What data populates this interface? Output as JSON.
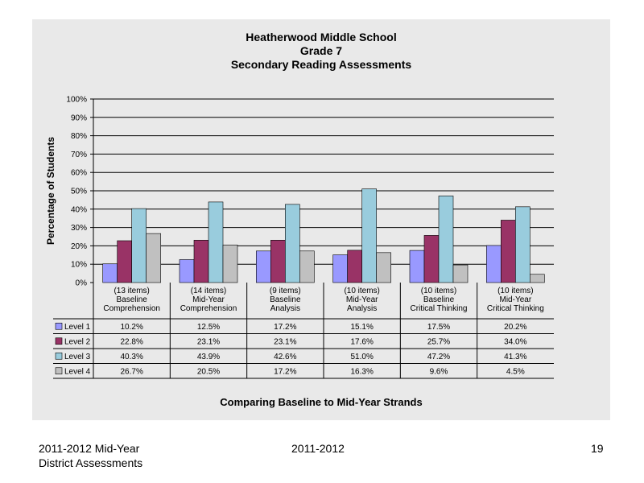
{
  "chart_data": {
    "type": "bar",
    "title": [
      "Heatherwood Middle School",
      "Grade 7",
      "Secondary Reading Assessments"
    ],
    "ylabel": "Percentage of Students",
    "xlabel": "Comparing Baseline to Mid-Year Strands",
    "ylim": [
      0,
      100
    ],
    "yticks": [
      "0%",
      "10%",
      "20%",
      "30%",
      "40%",
      "50%",
      "60%",
      "70%",
      "80%",
      "90%",
      "100%"
    ],
    "grid": true,
    "categories": [
      [
        "(13 items)",
        "Baseline",
        "Comprehension"
      ],
      [
        "(14 items)",
        "Mid-Year",
        "Comprehension"
      ],
      [
        "(9 items)",
        "Baseline",
        "Analysis"
      ],
      [
        "(10 items)",
        "Mid-Year",
        "Analysis"
      ],
      [
        "(10 items)",
        "Baseline",
        "Critical Thinking"
      ],
      [
        "(10 items)",
        "Mid-Year",
        "Critical Thinking"
      ]
    ],
    "series": [
      {
        "name": "Level 1",
        "color": "#9999ff",
        "values": [
          10.2,
          12.5,
          17.2,
          15.1,
          17.5,
          20.2
        ],
        "labels": [
          "10.2%",
          "12.5%",
          "17.2%",
          "15.1%",
          "17.5%",
          "20.2%"
        ]
      },
      {
        "name": "Level 2",
        "color": "#993366",
        "values": [
          22.8,
          23.1,
          23.1,
          17.6,
          25.7,
          34.0
        ],
        "labels": [
          "22.8%",
          "23.1%",
          "23.1%",
          "17.6%",
          "25.7%",
          "34.0%"
        ]
      },
      {
        "name": "Level 3",
        "color": "#99ccdd",
        "values": [
          40.3,
          43.9,
          42.6,
          51.0,
          47.2,
          41.3
        ],
        "labels": [
          "40.3%",
          "43.9%",
          "42.6%",
          "51.0%",
          "47.2%",
          "41.3%"
        ]
      },
      {
        "name": "Level 4",
        "color": "#c0c0c0",
        "values": [
          26.7,
          20.5,
          17.2,
          16.3,
          9.6,
          4.5
        ],
        "labels": [
          "26.7%",
          "20.5%",
          "17.2%",
          "16.3%",
          "9.6%",
          "4.5%"
        ]
      }
    ]
  },
  "footer": {
    "left_line1": "2011-2012  Mid-Year",
    "left_line2": "District Assessments",
    "center": "2011-2012",
    "page_number": "19"
  }
}
